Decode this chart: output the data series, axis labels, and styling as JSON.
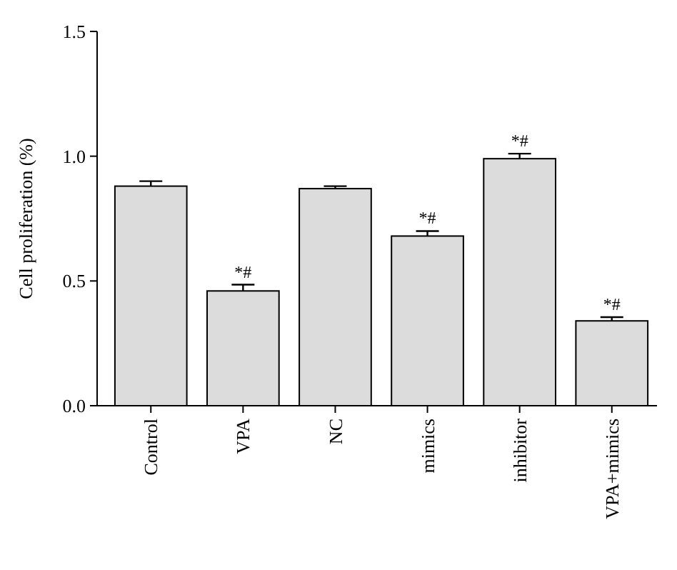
{
  "chart_data": {
    "type": "bar",
    "ylabel": "Cell proliferation (%)",
    "categories": [
      "Control",
      "VPA",
      "NC",
      "mimics",
      "inhibitor",
      "VPA+mimics"
    ],
    "values": [
      0.88,
      0.46,
      0.87,
      0.68,
      0.99,
      0.34
    ],
    "errors": [
      0.02,
      0.025,
      0.01,
      0.02,
      0.02,
      0.015
    ],
    "color": "#dcdcdc",
    "ylim": [
      0,
      1.5
    ],
    "yticks": [
      {
        "value": 0,
        "label": "0.0"
      },
      {
        "value": 0.5,
        "label": "0.5"
      },
      {
        "value": 1,
        "label": "1.0"
      },
      {
        "value": 1.5,
        "label": "1.5"
      }
    ],
    "annotations": [
      {
        "text": "*#",
        "x": "VPA",
        "y": 0.485
      },
      {
        "text": "*#",
        "x": "mimics",
        "y": 0.7
      },
      {
        "text": "*#",
        "x": "inhibitor",
        "y": 1.01
      },
      {
        "text": "*#",
        "x": "VPA+mimics",
        "y": 0.355
      }
    ]
  }
}
